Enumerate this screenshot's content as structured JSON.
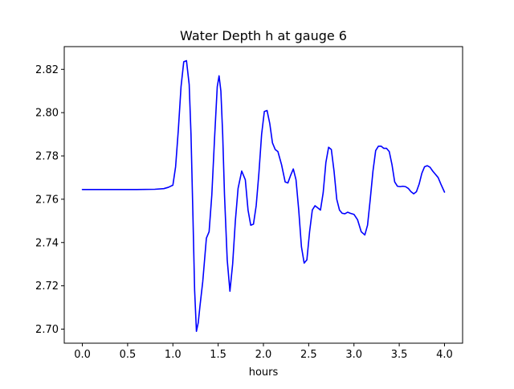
{
  "chart_data": {
    "type": "line",
    "title": "Water Depth h at gauge 6",
    "xlabel": "hours",
    "ylabel": "",
    "xlim": [
      -0.2,
      4.2
    ],
    "ylim": [
      2.6935,
      2.8305
    ],
    "xticks": [
      0.0,
      0.5,
      1.0,
      1.5,
      2.0,
      2.5,
      3.0,
      3.5,
      4.0
    ],
    "xtick_labels": [
      "0.0",
      "0.5",
      "1.0",
      "1.5",
      "2.0",
      "2.5",
      "3.0",
      "3.5",
      "4.0"
    ],
    "yticks": [
      2.7,
      2.72,
      2.74,
      2.76,
      2.78,
      2.8,
      2.82
    ],
    "ytick_labels": [
      "2.70",
      "2.72",
      "2.74",
      "2.76",
      "2.78",
      "2.80",
      "2.82"
    ],
    "grid": false,
    "legend": "none",
    "series": [
      {
        "color": "#0000ff",
        "x": [
          0.0,
          0.3,
          0.6,
          0.8,
          0.9,
          0.95,
          1.0,
          1.03,
          1.06,
          1.09,
          1.12,
          1.15,
          1.18,
          1.2,
          1.22,
          1.24,
          1.26,
          1.28,
          1.3,
          1.33,
          1.37,
          1.4,
          1.43,
          1.46,
          1.49,
          1.51,
          1.53,
          1.55,
          1.57,
          1.6,
          1.63,
          1.66,
          1.69,
          1.72,
          1.76,
          1.8,
          1.83,
          1.86,
          1.89,
          1.92,
          1.95,
          1.98,
          2.01,
          2.04,
          2.07,
          2.1,
          2.13,
          2.16,
          2.2,
          2.24,
          2.27,
          2.3,
          2.33,
          2.36,
          2.39,
          2.42,
          2.45,
          2.48,
          2.51,
          2.54,
          2.57,
          2.6,
          2.63,
          2.66,
          2.69,
          2.72,
          2.75,
          2.78,
          2.81,
          2.84,
          2.87,
          2.9,
          2.93,
          2.96,
          3.0,
          3.04,
          3.08,
          3.12,
          3.15,
          3.18,
          3.21,
          3.24,
          3.27,
          3.3,
          3.33,
          3.36,
          3.39,
          3.42,
          3.45,
          3.48,
          3.51,
          3.54,
          3.57,
          3.6,
          3.63,
          3.66,
          3.69,
          3.72,
          3.75,
          3.78,
          3.81,
          3.84,
          3.87,
          3.9,
          3.93,
          3.96,
          4.0
        ],
        "y": [
          2.7645,
          2.7645,
          2.7645,
          2.7646,
          2.7649,
          2.7655,
          2.7665,
          2.775,
          2.792,
          2.812,
          2.8235,
          2.824,
          2.813,
          2.79,
          2.755,
          2.718,
          2.699,
          2.703,
          2.711,
          2.722,
          2.742,
          2.745,
          2.762,
          2.788,
          2.812,
          2.817,
          2.81,
          2.79,
          2.762,
          2.732,
          2.7175,
          2.73,
          2.75,
          2.765,
          2.773,
          2.769,
          2.755,
          2.748,
          2.7485,
          2.757,
          2.772,
          2.79,
          2.8005,
          2.801,
          2.795,
          2.786,
          2.783,
          2.782,
          2.776,
          2.768,
          2.7675,
          2.771,
          2.774,
          2.769,
          2.755,
          2.738,
          2.7305,
          2.732,
          2.745,
          2.755,
          2.757,
          2.756,
          2.755,
          2.763,
          2.777,
          2.784,
          2.783,
          2.773,
          2.76,
          2.755,
          2.7535,
          2.7533,
          2.754,
          2.7535,
          2.753,
          2.7505,
          2.745,
          2.7435,
          2.748,
          2.76,
          2.773,
          2.7825,
          2.7845,
          2.7845,
          2.7835,
          2.7835,
          2.782,
          2.776,
          2.768,
          2.766,
          2.7658,
          2.766,
          2.7658,
          2.765,
          2.7635,
          2.7625,
          2.7635,
          2.767,
          2.772,
          2.775,
          2.7755,
          2.7748,
          2.773,
          2.7715,
          2.77,
          2.767,
          2.7633
        ]
      }
    ]
  }
}
